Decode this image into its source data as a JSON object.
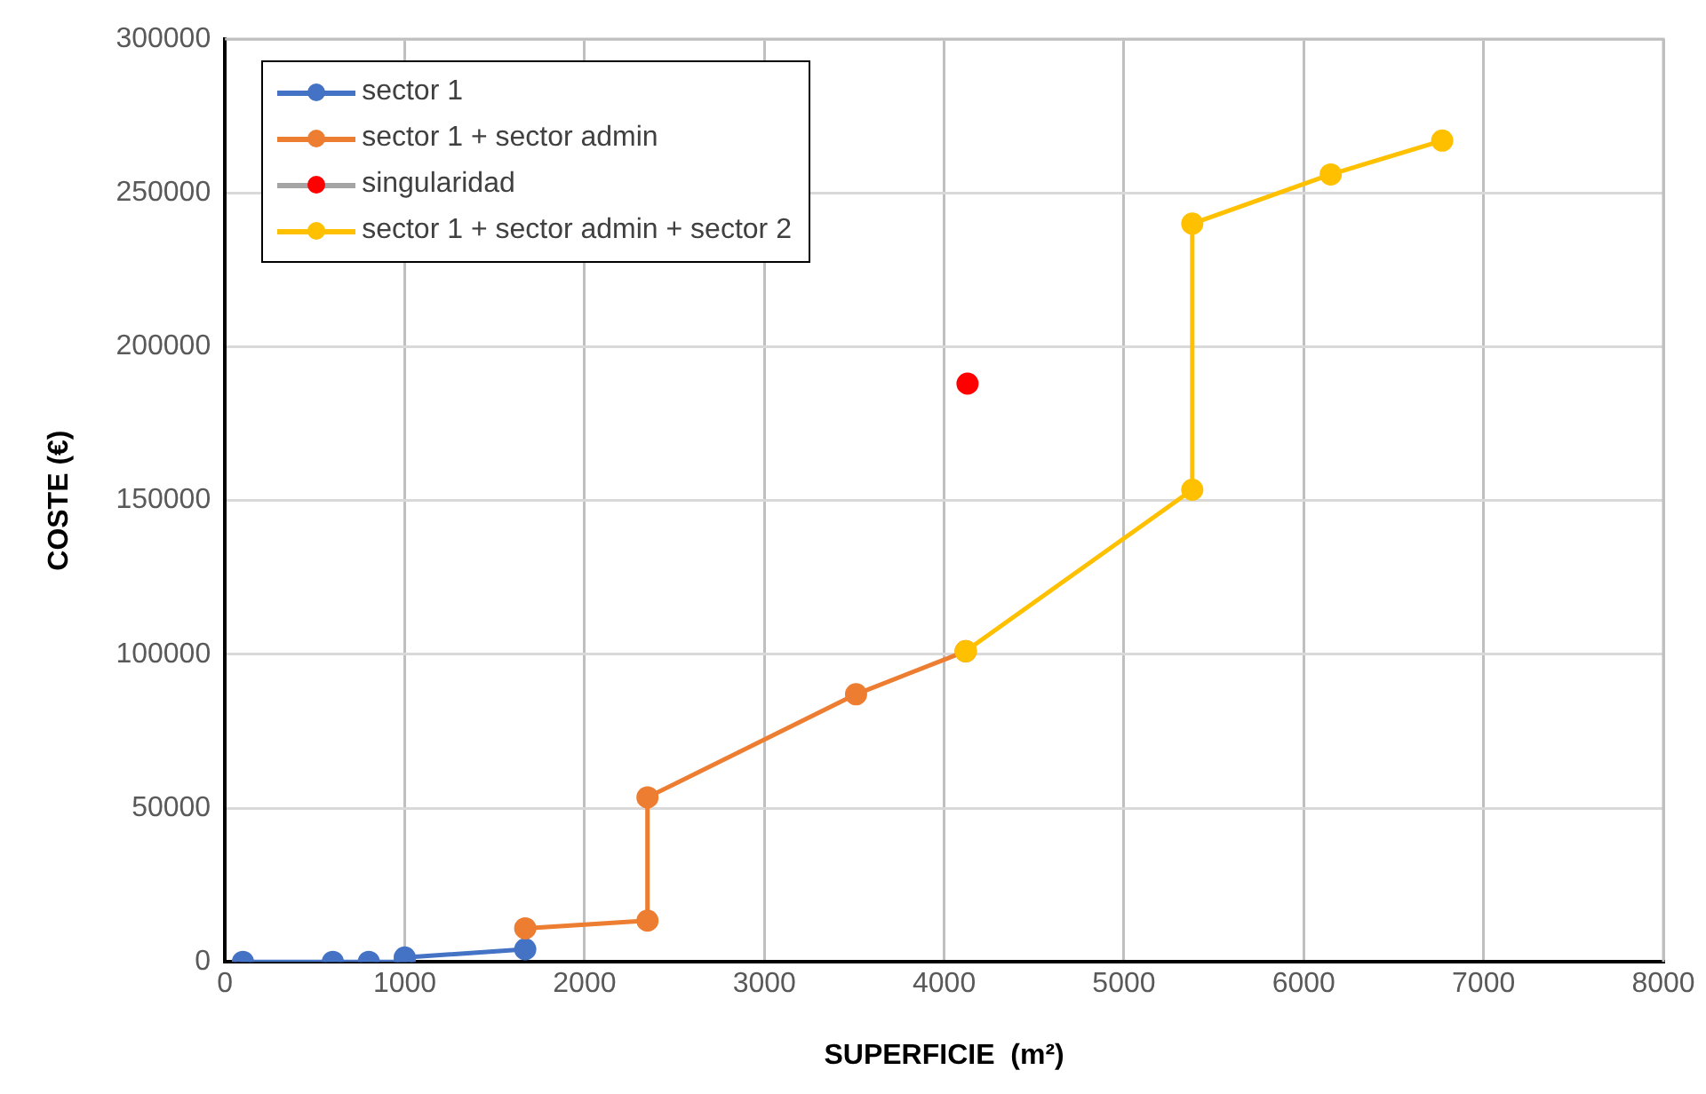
{
  "chart_data": {
    "type": "line",
    "xlabel": "SUPERFICIE  (m²)",
    "ylabel": "COSTE (€)",
    "xlim": [
      0,
      8000
    ],
    "xticks": [
      0,
      1000,
      2000,
      3000,
      4000,
      5000,
      6000,
      7000,
      8000
    ],
    "ylim": [
      0,
      300000
    ],
    "yticks": [
      0,
      50000,
      100000,
      150000,
      200000,
      250000,
      300000
    ],
    "grid": true,
    "legend": "top left",
    "marker": "circle",
    "line_style": "solid",
    "series": [
      {
        "name": "sector 1",
        "color": "#4472c4",
        "x": [
          100,
          600,
          800,
          1000,
          1000,
          1670
        ],
        "values": [
          0,
          0,
          0,
          0,
          1400,
          4100
        ]
      },
      {
        "name": "sector 1 + sector admin",
        "color": "#ed7d31",
        "x": [
          1670,
          2350,
          2350,
          3510,
          4120
        ],
        "values": [
          10900,
          13400,
          53500,
          87000,
          101000
        ]
      },
      {
        "name": "singularidad",
        "type": "scatter",
        "color": "#ff0000",
        "x": [
          4130
        ],
        "values": [
          188000
        ]
      },
      {
        "name": "sector 1 + sector admin + sector 2",
        "color": "#ffc000",
        "x": [
          4120,
          5380,
          5380,
          6150,
          6770
        ],
        "values": [
          101000,
          153500,
          240000,
          256000,
          267000
        ]
      }
    ]
  }
}
